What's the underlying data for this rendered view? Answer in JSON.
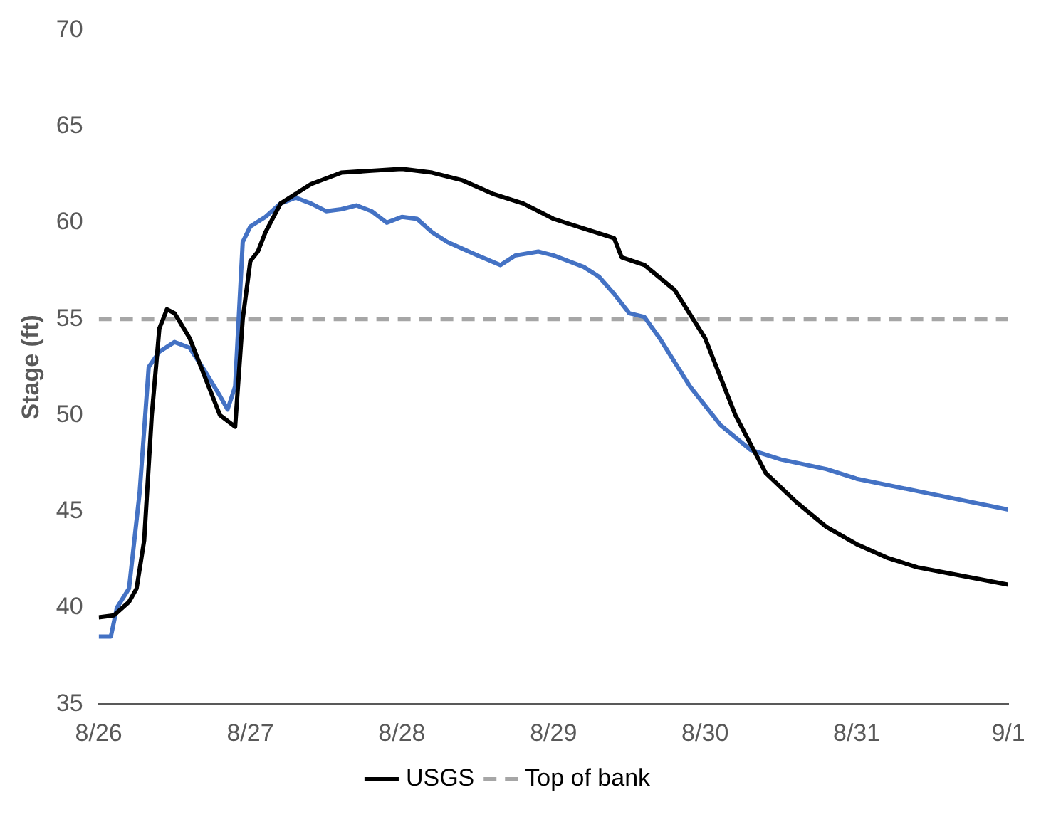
{
  "chart_data": {
    "type": "line",
    "ylabel": "Stage (ft)",
    "xlim": [
      "--08-26",
      "--09-01"
    ],
    "xticks": [
      {
        "value": "--08-26",
        "label": "8/26"
      },
      {
        "value": "--08-27",
        "label": "8/27"
      },
      {
        "value": "--08-28",
        "label": "8/28"
      },
      {
        "value": "--08-29",
        "label": "8/29"
      },
      {
        "value": "--08-30",
        "label": "8/30"
      },
      {
        "value": "--08-31",
        "label": "8/31"
      },
      {
        "value": "--09-01",
        "label": "9/1"
      }
    ],
    "ylim": [
      35,
      70
    ],
    "yticks": [
      35,
      40,
      45,
      50,
      55,
      60,
      65,
      70
    ],
    "grid": false,
    "legend": "bottom",
    "marker": "none",
    "line_style": "solid",
    "series": [
      {
        "name": "USGS",
        "color": "#000000",
        "x": [
          "--08-26T00:00",
          "--08-26T02:24",
          "--08-26T04:48",
          "--08-26T06:00",
          "--08-26T07:12",
          "--08-26T08:24",
          "--08-26T09:36",
          "--08-26T10:48",
          "--08-26T12:00",
          "--08-26T14:24",
          "--08-26T16:48",
          "--08-26T19:12",
          "--08-26T21:36",
          "--08-26T22:48",
          "--08-27T00:00",
          "--08-27T01:12",
          "--08-27T02:24",
          "--08-27T04:48",
          "--08-27T07:12",
          "--08-27T09:36",
          "--08-27T12:00",
          "--08-27T14:24",
          "--08-27T19:12",
          "--08-28T00:00",
          "--08-28T04:48",
          "--08-28T09:36",
          "--08-28T14:24",
          "--08-28T19:12",
          "--08-29T00:00",
          "--08-29T04:48",
          "--08-29T09:36",
          "--08-29T10:48",
          "--08-29T14:24",
          "--08-29T19:12",
          "--08-30T00:00",
          "--08-30T04:48",
          "--08-30T09:36",
          "--08-30T14:24",
          "--08-30T19:12",
          "--08-31T00:00",
          "--08-31T04:48",
          "--08-31T09:36",
          "--08-31T14:24",
          "--09-01T00:00"
        ],
        "values": [
          39.5,
          39.6,
          40.3,
          41,
          43.5,
          50,
          54.5,
          55.5,
          55.3,
          54,
          52,
          50,
          49.4,
          55,
          58,
          58.5,
          59.5,
          61,
          61.5,
          62,
          62.3,
          62.6,
          62.7,
          62.8,
          62.6,
          62.2,
          61.5,
          61,
          60.2,
          59.7,
          59.2,
          58.2,
          57.8,
          56.5,
          54,
          50,
          47,
          45.5,
          44.2,
          43.3,
          42.6,
          42.1,
          41.8,
          41.2
        ]
      },
      {
        "color": "#4472c4",
        "x": [
          "--08-26T00:00",
          "--08-26T01:55",
          "--08-26T02:53",
          "--08-26T04:48",
          "--08-26T06:29",
          "--08-26T07:55",
          "--08-26T09:36",
          "--08-26T12:00",
          "--08-26T14:24",
          "--08-26T16:48",
          "--08-26T19:12",
          "--08-26T20:24",
          "--08-26T21:36",
          "--08-26T22:48",
          "--08-27T00:00",
          "--08-27T02:24",
          "--08-27T04:48",
          "--08-27T07:12",
          "--08-27T09:36",
          "--08-27T12:00",
          "--08-27T14:24",
          "--08-27T16:48",
          "--08-27T19:12",
          "--08-27T21:36",
          "--08-28T00:00",
          "--08-28T02:24",
          "--08-28T04:48",
          "--08-28T07:12",
          "--08-28T12:00",
          "--08-28T15:36",
          "--08-28T18:00",
          "--08-28T21:36",
          "--08-29T00:00",
          "--08-29T02:24",
          "--08-29T04:48",
          "--08-29T07:12",
          "--08-29T09:36",
          "--08-29T12:00",
          "--08-29T14:24",
          "--08-29T16:48",
          "--08-29T21:36",
          "--08-30T02:24",
          "--08-30T07:12",
          "--08-30T12:00",
          "--08-30T19:12",
          "--08-31T00:00",
          "--08-31T12:00",
          "--09-01T00:00"
        ],
        "values": [
          38.5,
          38.5,
          40,
          41,
          46,
          52.5,
          53.3,
          53.8,
          53.5,
          52.3,
          51,
          50.3,
          51.5,
          59,
          59.8,
          60.3,
          61,
          61.3,
          61,
          60.6,
          60.7,
          60.9,
          60.6,
          60,
          60.3,
          60.2,
          59.5,
          59,
          58.3,
          57.8,
          58.3,
          58.5,
          58.3,
          58,
          57.7,
          57.2,
          56.3,
          55.3,
          55.1,
          54,
          51.5,
          49.5,
          48.2,
          47.7,
          47.2,
          46.7,
          45.9,
          45.1
        ]
      }
    ],
    "ref_lines": [
      {
        "axis": "y",
        "value": 55,
        "label": "Top of bank",
        "color": "#a6a6a6",
        "line_style": "dashed"
      }
    ]
  }
}
